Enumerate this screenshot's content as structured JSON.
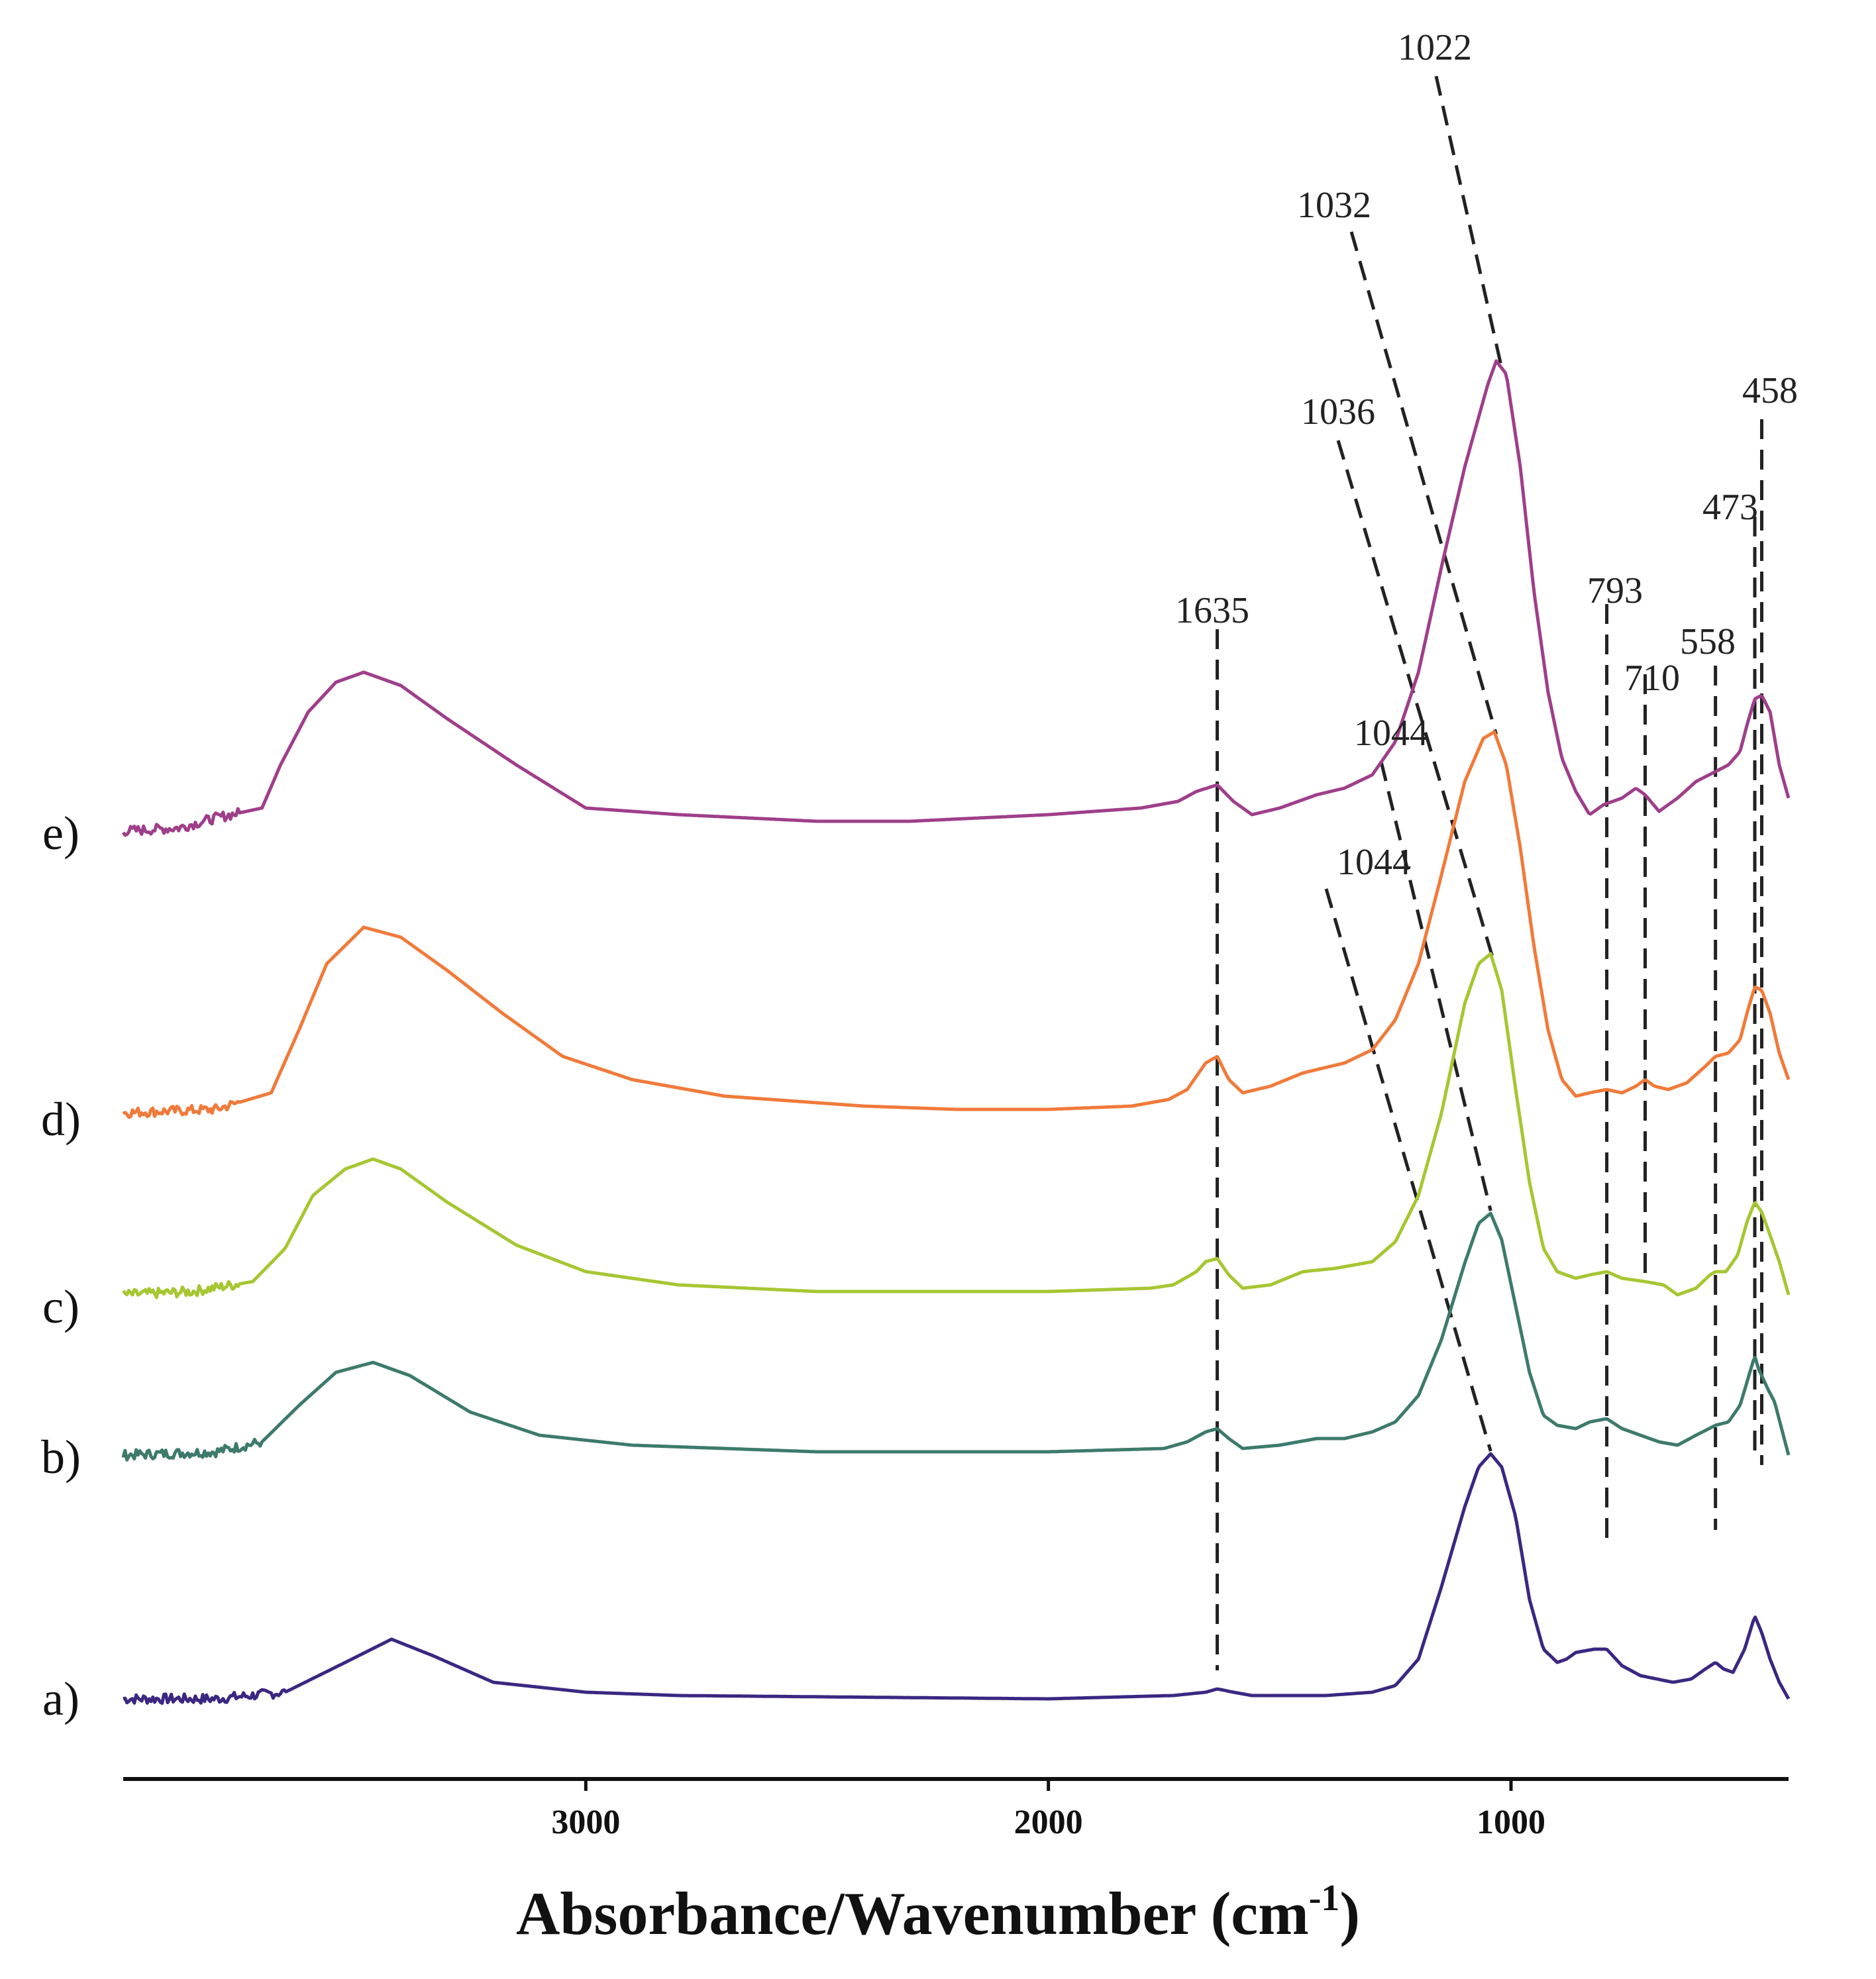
{
  "chart_data": {
    "type": "line",
    "title": "",
    "xlabel": "Absorbance/Wavenumber (cm",
    "xlabel_sup": "-1",
    "xlabel_close": ")",
    "xlim": [
      4000,
      400
    ],
    "x_inverted": true,
    "ticks": [
      3000,
      2000,
      1000
    ],
    "tick_labels": [
      "3000",
      "2000",
      "1000"
    ],
    "grid": false,
    "series": [
      {
        "name": "a)",
        "color": "#3b2781",
        "baseline": 0.0,
        "noise_below": 3650,
        "points": [
          [
            4000,
            0.0
          ],
          [
            3800,
            0.0
          ],
          [
            3650,
            0.02
          ],
          [
            3520,
            0.11
          ],
          [
            3420,
            0.18
          ],
          [
            3330,
            0.13
          ],
          [
            3200,
            0.05
          ],
          [
            3000,
            0.02
          ],
          [
            2800,
            0.01
          ],
          [
            2000,
            0.0
          ],
          [
            1730,
            0.01
          ],
          [
            1660,
            0.02
          ],
          [
            1635,
            0.03
          ],
          [
            1600,
            0.02
          ],
          [
            1560,
            0.01
          ],
          [
            1400,
            0.01
          ],
          [
            1300,
            0.02
          ],
          [
            1250,
            0.04
          ],
          [
            1200,
            0.12
          ],
          [
            1150,
            0.34
          ],
          [
            1100,
            0.58
          ],
          [
            1070,
            0.7
          ],
          [
            1044,
            0.74
          ],
          [
            1020,
            0.7
          ],
          [
            990,
            0.55
          ],
          [
            960,
            0.3
          ],
          [
            930,
            0.15
          ],
          [
            900,
            0.11
          ],
          [
            880,
            0.12
          ],
          [
            860,
            0.14
          ],
          [
            820,
            0.15
          ],
          [
            793,
            0.15
          ],
          [
            760,
            0.1
          ],
          [
            720,
            0.07
          ],
          [
            650,
            0.05
          ],
          [
            610,
            0.06
          ],
          [
            580,
            0.09
          ],
          [
            558,
            0.11
          ],
          [
            540,
            0.09
          ],
          [
            520,
            0.08
          ],
          [
            495,
            0.15
          ],
          [
            473,
            0.25
          ],
          [
            458,
            0.2
          ],
          [
            440,
            0.12
          ],
          [
            420,
            0.05
          ],
          [
            400,
            0.0
          ]
        ]
      },
      {
        "name": "b)",
        "color": "#3d7a6c",
        "baseline": 0.0,
        "noise_below": 3700,
        "points": [
          [
            4000,
            0.0
          ],
          [
            3800,
            0.01
          ],
          [
            3700,
            0.04
          ],
          [
            3620,
            0.15
          ],
          [
            3540,
            0.25
          ],
          [
            3460,
            0.28
          ],
          [
            3380,
            0.24
          ],
          [
            3250,
            0.13
          ],
          [
            3100,
            0.06
          ],
          [
            2900,
            0.03
          ],
          [
            2500,
            0.01
          ],
          [
            2000,
            0.01
          ],
          [
            1750,
            0.02
          ],
          [
            1700,
            0.04
          ],
          [
            1660,
            0.07
          ],
          [
            1635,
            0.08
          ],
          [
            1610,
            0.05
          ],
          [
            1580,
            0.02
          ],
          [
            1500,
            0.03
          ],
          [
            1420,
            0.05
          ],
          [
            1360,
            0.05
          ],
          [
            1300,
            0.07
          ],
          [
            1250,
            0.1
          ],
          [
            1200,
            0.18
          ],
          [
            1150,
            0.35
          ],
          [
            1100,
            0.58
          ],
          [
            1070,
            0.7
          ],
          [
            1044,
            0.73
          ],
          [
            1020,
            0.65
          ],
          [
            990,
            0.45
          ],
          [
            960,
            0.25
          ],
          [
            930,
            0.12
          ],
          [
            900,
            0.09
          ],
          [
            860,
            0.08
          ],
          [
            830,
            0.1
          ],
          [
            793,
            0.11
          ],
          [
            760,
            0.08
          ],
          [
            720,
            0.06
          ],
          [
            680,
            0.04
          ],
          [
            640,
            0.03
          ],
          [
            600,
            0.06
          ],
          [
            558,
            0.09
          ],
          [
            530,
            0.1
          ],
          [
            505,
            0.15
          ],
          [
            490,
            0.22
          ],
          [
            473,
            0.3
          ],
          [
            465,
            0.26
          ],
          [
            458,
            0.24
          ],
          [
            445,
            0.2
          ],
          [
            430,
            0.16
          ],
          [
            415,
            0.08
          ],
          [
            400,
            0.0
          ]
        ]
      },
      {
        "name": "c)",
        "color": "#a6c632",
        "baseline": 0.0,
        "noise_below": 3750,
        "points": [
          [
            4000,
            0.0
          ],
          [
            3850,
            0.01
          ],
          [
            3720,
            0.04
          ],
          [
            3650,
            0.14
          ],
          [
            3590,
            0.3
          ],
          [
            3520,
            0.38
          ],
          [
            3460,
            0.41
          ],
          [
            3400,
            0.38
          ],
          [
            3300,
            0.28
          ],
          [
            3150,
            0.15
          ],
          [
            3000,
            0.07
          ],
          [
            2800,
            0.03
          ],
          [
            2500,
            0.01
          ],
          [
            2000,
            0.01
          ],
          [
            1780,
            0.02
          ],
          [
            1730,
            0.03
          ],
          [
            1680,
            0.07
          ],
          [
            1660,
            0.1
          ],
          [
            1635,
            0.11
          ],
          [
            1610,
            0.06
          ],
          [
            1580,
            0.02
          ],
          [
            1520,
            0.03
          ],
          [
            1450,
            0.07
          ],
          [
            1380,
            0.08
          ],
          [
            1300,
            0.1
          ],
          [
            1250,
            0.16
          ],
          [
            1200,
            0.3
          ],
          [
            1150,
            0.55
          ],
          [
            1100,
            0.88
          ],
          [
            1070,
            1.0
          ],
          [
            1044,
            1.03
          ],
          [
            1020,
            0.92
          ],
          [
            990,
            0.62
          ],
          [
            960,
            0.34
          ],
          [
            930,
            0.14
          ],
          [
            900,
            0.07
          ],
          [
            860,
            0.05
          ],
          [
            830,
            0.06
          ],
          [
            793,
            0.07
          ],
          [
            760,
            0.05
          ],
          [
            710,
            0.04
          ],
          [
            670,
            0.03
          ],
          [
            640,
            0.0
          ],
          [
            600,
            0.02
          ],
          [
            570,
            0.06
          ],
          [
            558,
            0.07
          ],
          [
            535,
            0.07
          ],
          [
            510,
            0.12
          ],
          [
            490,
            0.22
          ],
          [
            473,
            0.28
          ],
          [
            458,
            0.25
          ],
          [
            440,
            0.18
          ],
          [
            420,
            0.1
          ],
          [
            400,
            0.0
          ]
        ]
      },
      {
        "name": "d)",
        "color": "#f07a3a",
        "baseline": 0.0,
        "noise_below": 3750,
        "points": [
          [
            4000,
            0.0
          ],
          [
            3800,
            0.01
          ],
          [
            3680,
            0.06
          ],
          [
            3620,
            0.25
          ],
          [
            3560,
            0.45
          ],
          [
            3480,
            0.56
          ],
          [
            3400,
            0.53
          ],
          [
            3300,
            0.43
          ],
          [
            3180,
            0.3
          ],
          [
            3050,
            0.17
          ],
          [
            2900,
            0.1
          ],
          [
            2700,
            0.05
          ],
          [
            2400,
            0.02
          ],
          [
            2200,
            0.01
          ],
          [
            2000,
            0.01
          ],
          [
            1820,
            0.02
          ],
          [
            1740,
            0.04
          ],
          [
            1700,
            0.07
          ],
          [
            1660,
            0.15
          ],
          [
            1635,
            0.17
          ],
          [
            1610,
            0.1
          ],
          [
            1580,
            0.06
          ],
          [
            1520,
            0.08
          ],
          [
            1450,
            0.12
          ],
          [
            1360,
            0.15
          ],
          [
            1300,
            0.19
          ],
          [
            1250,
            0.28
          ],
          [
            1200,
            0.45
          ],
          [
            1150,
            0.72
          ],
          [
            1100,
            1.0
          ],
          [
            1060,
            1.13
          ],
          [
            1036,
            1.15
          ],
          [
            1010,
            1.05
          ],
          [
            980,
            0.8
          ],
          [
            950,
            0.5
          ],
          [
            920,
            0.25
          ],
          [
            890,
            0.1
          ],
          [
            860,
            0.05
          ],
          [
            830,
            0.06
          ],
          [
            793,
            0.07
          ],
          [
            760,
            0.06
          ],
          [
            730,
            0.08
          ],
          [
            710,
            0.1
          ],
          [
            690,
            0.08
          ],
          [
            660,
            0.07
          ],
          [
            620,
            0.09
          ],
          [
            580,
            0.14
          ],
          [
            558,
            0.17
          ],
          [
            530,
            0.18
          ],
          [
            505,
            0.22
          ],
          [
            490,
            0.3
          ],
          [
            473,
            0.38
          ],
          [
            458,
            0.37
          ],
          [
            440,
            0.3
          ],
          [
            420,
            0.18
          ],
          [
            400,
            0.1
          ]
        ]
      },
      {
        "name": "e)",
        "color": "#9e3f8a",
        "baseline": 0.0,
        "noise_below": 3750,
        "points": [
          [
            4000,
            0.0
          ],
          [
            3880,
            0.01
          ],
          [
            3800,
            0.04
          ],
          [
            3700,
            0.07
          ],
          [
            3660,
            0.2
          ],
          [
            3600,
            0.36
          ],
          [
            3540,
            0.45
          ],
          [
            3480,
            0.48
          ],
          [
            3400,
            0.44
          ],
          [
            3300,
            0.34
          ],
          [
            3150,
            0.2
          ],
          [
            3000,
            0.07
          ],
          [
            2800,
            0.05
          ],
          [
            2500,
            0.03
          ],
          [
            2300,
            0.03
          ],
          [
            2000,
            0.05
          ],
          [
            1800,
            0.07
          ],
          [
            1720,
            0.09
          ],
          [
            1680,
            0.12
          ],
          [
            1635,
            0.14
          ],
          [
            1600,
            0.09
          ],
          [
            1560,
            0.05
          ],
          [
            1500,
            0.07
          ],
          [
            1420,
            0.11
          ],
          [
            1360,
            0.13
          ],
          [
            1300,
            0.17
          ],
          [
            1250,
            0.27
          ],
          [
            1200,
            0.48
          ],
          [
            1150,
            0.8
          ],
          [
            1100,
            1.1
          ],
          [
            1050,
            1.35
          ],
          [
            1032,
            1.42
          ],
          [
            1010,
            1.38
          ],
          [
            980,
            1.1
          ],
          [
            950,
            0.72
          ],
          [
            920,
            0.42
          ],
          [
            890,
            0.22
          ],
          [
            860,
            0.12
          ],
          [
            830,
            0.05
          ],
          [
            800,
            0.08
          ],
          [
            760,
            0.1
          ],
          [
            730,
            0.13
          ],
          [
            710,
            0.11
          ],
          [
            680,
            0.06
          ],
          [
            640,
            0.1
          ],
          [
            600,
            0.15
          ],
          [
            558,
            0.18
          ],
          [
            530,
            0.2
          ],
          [
            505,
            0.24
          ],
          [
            490,
            0.32
          ],
          [
            473,
            0.4
          ],
          [
            458,
            0.41
          ],
          [
            440,
            0.36
          ],
          [
            420,
            0.2
          ],
          [
            400,
            0.1
          ]
        ]
      }
    ],
    "annotations": [
      {
        "label": "1044",
        "series": "a)",
        "x": 1044
      },
      {
        "label": "1044",
        "series": "b)",
        "x": 1044
      },
      {
        "label": "1036",
        "series": "c)",
        "x": 1036
      },
      {
        "label": "1032",
        "series": "d)",
        "x": 1032
      },
      {
        "label": "1022",
        "series": "e)",
        "x": 1022
      }
    ],
    "reference_lines": [
      {
        "label": "1635",
        "x": 1635
      },
      {
        "label": "793",
        "x": 793
      },
      {
        "label": "710",
        "x": 710
      },
      {
        "label": "558",
        "x": 558
      },
      {
        "label": "473",
        "x": 473
      },
      {
        "label": "458",
        "x": 458
      }
    ]
  }
}
